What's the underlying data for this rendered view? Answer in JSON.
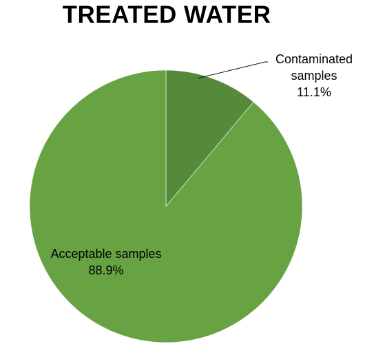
{
  "chart_data": {
    "type": "pie",
    "title": "TREATED WATER",
    "slices": [
      {
        "label_lines": [
          "Contaminated",
          "samples"
        ],
        "value_label": "11.1%",
        "value": 11.1,
        "color": "#548a39"
      },
      {
        "label_lines": [
          "Acceptable samples"
        ],
        "value_label": "88.9%",
        "value": 88.9,
        "color": "#67a343"
      }
    ],
    "start_angle_deg": 0,
    "direction": "clockwise",
    "legend": "none",
    "label_style": "category-name-and-percentage",
    "leader_line_on": "Contaminated samples"
  }
}
